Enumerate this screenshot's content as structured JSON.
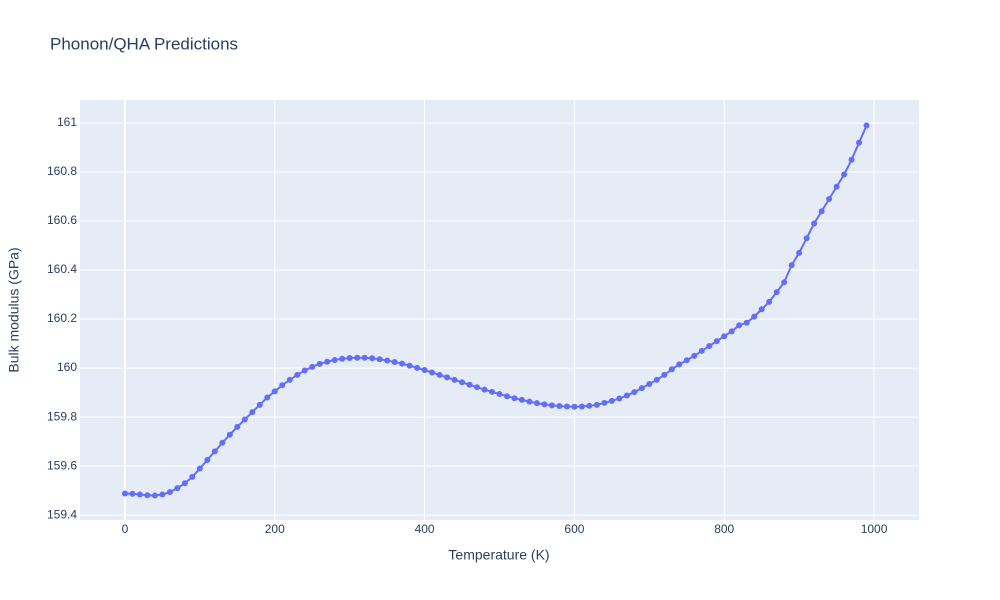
{
  "chart_data": {
    "type": "line",
    "title": "Phonon/QHA Predictions",
    "x_label": "Temperature (K)",
    "y_label": "Bulk modulus (GPa)",
    "x": [
      0,
      10,
      20,
      30,
      40,
      50,
      60,
      70,
      80,
      90,
      100,
      110,
      120,
      130,
      140,
      150,
      160,
      170,
      180,
      190,
      200,
      210,
      220,
      230,
      240,
      250,
      260,
      270,
      280,
      290,
      300,
      310,
      320,
      330,
      340,
      350,
      360,
      370,
      380,
      390,
      400,
      410,
      420,
      430,
      440,
      450,
      460,
      470,
      480,
      490,
      500,
      510,
      520,
      530,
      540,
      550,
      560,
      570,
      580,
      590,
      600,
      610,
      620,
      630,
      640,
      650,
      660,
      670,
      680,
      690,
      700,
      710,
      720,
      730,
      740,
      750,
      760,
      770,
      780,
      790,
      800,
      810,
      820,
      830,
      840,
      850,
      860,
      870,
      880,
      890,
      900,
      910,
      920,
      930,
      940,
      950,
      960,
      970,
      980,
      990
    ],
    "values": [
      159.488,
      159.487,
      159.484,
      159.481,
      159.48,
      159.484,
      159.494,
      159.51,
      159.53,
      159.556,
      159.59,
      159.625,
      159.66,
      159.695,
      159.728,
      159.76,
      159.79,
      159.82,
      159.85,
      159.88,
      159.905,
      159.93,
      159.952,
      159.972,
      159.99,
      160.005,
      160.017,
      160.026,
      160.033,
      160.038,
      160.041,
      160.042,
      160.042,
      160.04,
      160.036,
      160.031,
      160.025,
      160.018,
      160.01,
      160.001,
      159.992,
      159.982,
      159.972,
      159.962,
      159.952,
      159.942,
      159.932,
      159.922,
      159.912,
      159.903,
      159.894,
      159.885,
      159.877,
      159.87,
      159.863,
      159.857,
      159.852,
      159.848,
      159.845,
      159.843,
      159.842,
      159.843,
      159.846,
      159.85,
      159.858,
      159.866,
      159.876,
      159.888,
      159.902,
      159.918,
      159.935,
      159.952,
      159.972,
      159.995,
      160.015,
      160.032,
      160.05,
      160.07,
      160.09,
      160.11,
      160.13,
      160.15,
      160.175,
      160.185,
      160.21,
      160.24,
      160.27,
      160.31,
      160.35,
      160.42,
      160.47,
      160.53,
      160.59,
      160.64,
      160.69,
      160.74,
      160.79,
      160.85,
      160.92,
      160.99
    ],
    "color": "#636efa",
    "xlim": [
      -60,
      1060
    ],
    "xticks": [
      0,
      200,
      400,
      600,
      800,
      1000
    ],
    "ylim": [
      159.38,
      161.094
    ],
    "yticks": [
      159.4,
      159.6,
      159.8,
      160,
      160.2,
      160.4,
      160.6,
      160.8,
      161
    ],
    "grid": true
  }
}
